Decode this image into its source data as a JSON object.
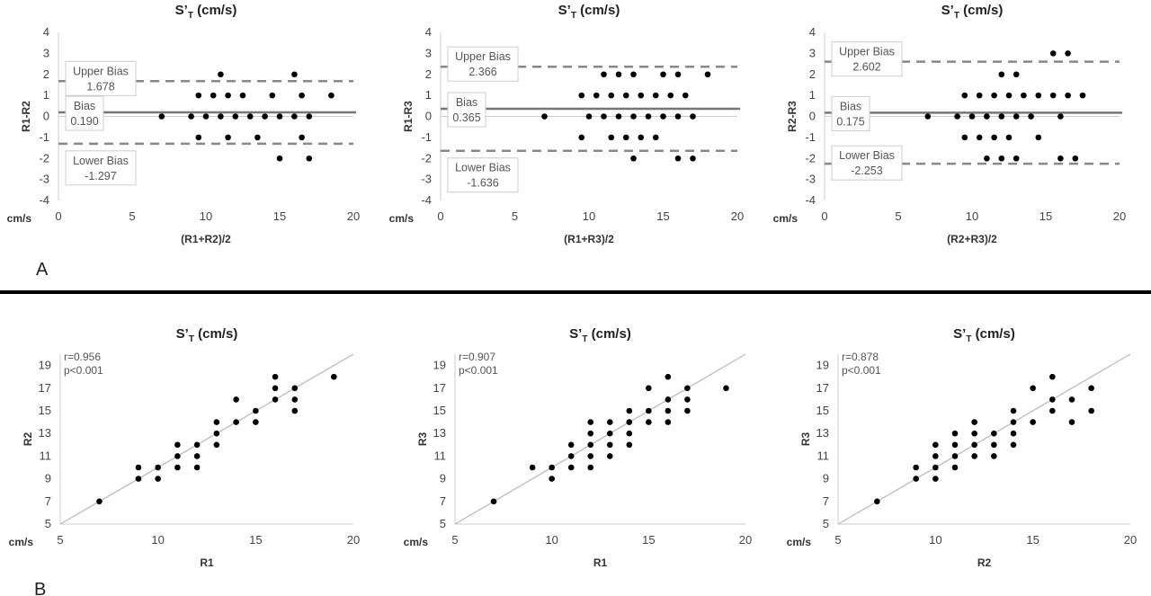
{
  "panel_labels": {
    "a": "A",
    "b": "B"
  },
  "chart_data": [
    {
      "type": "scatter",
      "kind": "bland-altman",
      "title": "S’T (cm/s)",
      "title_main": "S’",
      "title_sub": "T",
      "title_rest": " (cm/s)",
      "xlabel": "(R1+R2)/2",
      "ylabel": "R1-R2",
      "unit_label": "cm/s",
      "xlim": [
        0,
        20
      ],
      "ylim": [
        -4,
        4
      ],
      "xticks": [
        0,
        5,
        10,
        15,
        20
      ],
      "yticks": [
        4,
        3,
        2,
        1,
        0,
        -1,
        -2,
        -3,
        -4
      ],
      "bias": {
        "label": "Bias",
        "value": 0.19,
        "text": "0.190"
      },
      "upper": {
        "label": "Upper Bias",
        "value": 1.678,
        "text": "1.678"
      },
      "lower": {
        "label": "Lower Bias",
        "value": -1.297,
        "text": "-1.297"
      },
      "points": [
        [
          11,
          2
        ],
        [
          16,
          2
        ],
        [
          9.5,
          1
        ],
        [
          10.5,
          1
        ],
        [
          11.5,
          1
        ],
        [
          12.5,
          1
        ],
        [
          14.5,
          1
        ],
        [
          16.5,
          1
        ],
        [
          18.5,
          1
        ],
        [
          7,
          0
        ],
        [
          9,
          0
        ],
        [
          10,
          0
        ],
        [
          11,
          0
        ],
        [
          12,
          0
        ],
        [
          13,
          0
        ],
        [
          14,
          0
        ],
        [
          15,
          0
        ],
        [
          16,
          0
        ],
        [
          17,
          0
        ],
        [
          9.5,
          -1
        ],
        [
          11.5,
          -1
        ],
        [
          13.5,
          -1
        ],
        [
          16.5,
          -1
        ],
        [
          15,
          -2
        ],
        [
          17,
          -2
        ]
      ]
    },
    {
      "type": "scatter",
      "kind": "bland-altman",
      "title": "S’T (cm/s)",
      "title_main": "S’",
      "title_sub": "T",
      "title_rest": " (cm/s)",
      "xlabel": "(R1+R3)/2",
      "ylabel": "R1-R3",
      "unit_label": "cm/s",
      "xlim": [
        0,
        20
      ],
      "ylim": [
        -4,
        4
      ],
      "xticks": [
        0,
        5,
        10,
        15,
        20
      ],
      "yticks": [
        4,
        3,
        2,
        1,
        0,
        -1,
        -2,
        -3,
        -4
      ],
      "bias": {
        "label": "Bias",
        "value": 0.365,
        "text": "0.365"
      },
      "upper": {
        "label": "Upper Bias",
        "value": 2.366,
        "text": "2.366"
      },
      "lower": {
        "label": "Lower Bias",
        "value": -1.636,
        "text": "-1.636"
      },
      "points": [
        [
          11,
          2
        ],
        [
          12,
          2
        ],
        [
          13,
          2
        ],
        [
          15,
          2
        ],
        [
          16,
          2
        ],
        [
          18,
          2
        ],
        [
          9.5,
          1
        ],
        [
          10.5,
          1
        ],
        [
          11.5,
          1
        ],
        [
          12.5,
          1
        ],
        [
          13.5,
          1
        ],
        [
          14.5,
          1
        ],
        [
          15.5,
          1
        ],
        [
          16.5,
          1
        ],
        [
          7,
          0
        ],
        [
          10,
          0
        ],
        [
          11,
          0
        ],
        [
          12,
          0
        ],
        [
          13,
          0
        ],
        [
          14,
          0
        ],
        [
          15,
          0
        ],
        [
          16,
          0
        ],
        [
          17,
          0
        ],
        [
          9.5,
          -1
        ],
        [
          11.5,
          -1
        ],
        [
          12.5,
          -1
        ],
        [
          13.5,
          -1
        ],
        [
          14.5,
          -1
        ],
        [
          13,
          -2
        ],
        [
          16,
          -2
        ],
        [
          17,
          -2
        ]
      ]
    },
    {
      "type": "scatter",
      "kind": "bland-altman",
      "title": "S’T (cm/s)",
      "title_main": "S’",
      "title_sub": "T",
      "title_rest": " (cm/s)",
      "xlabel": "(R2+R3)/2",
      "ylabel": "R2-R3",
      "unit_label": "cm/s",
      "xlim": [
        0,
        20
      ],
      "ylim": [
        -4,
        4
      ],
      "xticks": [
        0,
        5,
        10,
        15,
        20
      ],
      "yticks": [
        4,
        3,
        2,
        1,
        0,
        -1,
        -2,
        -3,
        -4
      ],
      "bias": {
        "label": "Bias",
        "value": 0.175,
        "text": "0.175"
      },
      "upper": {
        "label": "Upper Bias",
        "value": 2.602,
        "text": "2.602"
      },
      "lower": {
        "label": "Lower Bias",
        "value": -2.253,
        "text": "-2.253"
      },
      "points": [
        [
          15.5,
          3
        ],
        [
          16.5,
          3
        ],
        [
          12,
          2
        ],
        [
          13,
          2
        ],
        [
          9.5,
          1
        ],
        [
          10.5,
          1
        ],
        [
          11.5,
          1
        ],
        [
          12.5,
          1
        ],
        [
          13.5,
          1
        ],
        [
          14.5,
          1
        ],
        [
          15.5,
          1
        ],
        [
          16.5,
          1
        ],
        [
          17.5,
          1
        ],
        [
          7,
          0
        ],
        [
          9,
          0
        ],
        [
          10,
          0
        ],
        [
          11,
          0
        ],
        [
          12,
          0
        ],
        [
          13,
          0
        ],
        [
          14,
          0
        ],
        [
          16,
          0
        ],
        [
          9.5,
          -1
        ],
        [
          10.5,
          -1
        ],
        [
          11.5,
          -1
        ],
        [
          12.5,
          -1
        ],
        [
          14.5,
          -1
        ],
        [
          11,
          -2
        ],
        [
          12,
          -2
        ],
        [
          13,
          -2
        ],
        [
          16,
          -2
        ],
        [
          17,
          -2
        ]
      ]
    },
    {
      "type": "scatter",
      "kind": "correlation",
      "title": "S’T (cm/s)",
      "title_main": "S’",
      "title_sub": "T",
      "title_rest": " (cm/s)",
      "xlabel": "R1",
      "ylabel": "R2",
      "unit_label": "cm/s",
      "xlim": [
        5,
        20
      ],
      "ylim": [
        5,
        20
      ],
      "xticks": [
        5,
        10,
        15,
        20
      ],
      "yticks": [
        19,
        17,
        15,
        13,
        11,
        9,
        7,
        5
      ],
      "r_text": "r=0.956",
      "p_text": "p<0.001",
      "identity_line": true,
      "points": [
        [
          7,
          7
        ],
        [
          9,
          9
        ],
        [
          9,
          10
        ],
        [
          10,
          9
        ],
        [
          10,
          10
        ],
        [
          11,
          10
        ],
        [
          11,
          11
        ],
        [
          11,
          12
        ],
        [
          12,
          10
        ],
        [
          12,
          11
        ],
        [
          12,
          12
        ],
        [
          13,
          12
        ],
        [
          13,
          13
        ],
        [
          13,
          14
        ],
        [
          14,
          14
        ],
        [
          14,
          16
        ],
        [
          15,
          14
        ],
        [
          15,
          15
        ],
        [
          16,
          16
        ],
        [
          16,
          17
        ],
        [
          16,
          18
        ],
        [
          17,
          15
        ],
        [
          17,
          16
        ],
        [
          17,
          17
        ],
        [
          19,
          18
        ]
      ]
    },
    {
      "type": "scatter",
      "kind": "correlation",
      "title": "S’T (cm/s)",
      "title_main": "S’",
      "title_sub": "T",
      "title_rest": " (cm/s)",
      "xlabel": "R1",
      "ylabel": "R3",
      "unit_label": "cm/s",
      "xlim": [
        5,
        20
      ],
      "ylim": [
        5,
        20
      ],
      "xticks": [
        5,
        10,
        15,
        20
      ],
      "yticks": [
        19,
        17,
        15,
        13,
        11,
        9,
        7,
        5
      ],
      "r_text": "r=0.907",
      "p_text": "p<0.001",
      "identity_line": true,
      "points": [
        [
          7,
          7
        ],
        [
          9,
          10
        ],
        [
          10,
          9
        ],
        [
          10,
          10
        ],
        [
          11,
          10
        ],
        [
          11,
          11
        ],
        [
          11,
          12
        ],
        [
          12,
          10
        ],
        [
          12,
          11
        ],
        [
          12,
          12
        ],
        [
          12,
          13
        ],
        [
          12,
          14
        ],
        [
          13,
          11
        ],
        [
          13,
          12
        ],
        [
          13,
          13
        ],
        [
          13,
          14
        ],
        [
          14,
          12
        ],
        [
          14,
          13
        ],
        [
          14,
          14
        ],
        [
          14,
          15
        ],
        [
          15,
          14
        ],
        [
          15,
          15
        ],
        [
          15,
          17
        ],
        [
          16,
          14
        ],
        [
          16,
          15
        ],
        [
          16,
          16
        ],
        [
          16,
          18
        ],
        [
          17,
          15
        ],
        [
          17,
          16
        ],
        [
          17,
          17
        ],
        [
          19,
          17
        ]
      ]
    },
    {
      "type": "scatter",
      "kind": "correlation",
      "title": "S’T (cm/s)",
      "title_main": "S’",
      "title_sub": "T",
      "title_rest": " (cm/s)",
      "xlabel": "R2",
      "ylabel": "R3",
      "unit_label": "cm/s",
      "xlim": [
        5,
        20
      ],
      "ylim": [
        5,
        20
      ],
      "xticks": [
        5,
        10,
        15,
        20
      ],
      "yticks": [
        19,
        17,
        15,
        13,
        11,
        9,
        7,
        5
      ],
      "r_text": "r=0.878",
      "p_text": "p<0.001",
      "identity_line": true,
      "points": [
        [
          7,
          7
        ],
        [
          9,
          9
        ],
        [
          9,
          10
        ],
        [
          10,
          9
        ],
        [
          10,
          10
        ],
        [
          10,
          11
        ],
        [
          10,
          12
        ],
        [
          11,
          10
        ],
        [
          11,
          11
        ],
        [
          11,
          12
        ],
        [
          11,
          13
        ],
        [
          12,
          11
        ],
        [
          12,
          12
        ],
        [
          12,
          13
        ],
        [
          12,
          14
        ],
        [
          13,
          11
        ],
        [
          13,
          12
        ],
        [
          13,
          13
        ],
        [
          14,
          12
        ],
        [
          14,
          13
        ],
        [
          14,
          14
        ],
        [
          14,
          15
        ],
        [
          15,
          14
        ],
        [
          15,
          17
        ],
        [
          16,
          15
        ],
        [
          16,
          16
        ],
        [
          16,
          18
        ],
        [
          17,
          14
        ],
        [
          17,
          16
        ],
        [
          18,
          15
        ],
        [
          18,
          17
        ]
      ]
    }
  ]
}
